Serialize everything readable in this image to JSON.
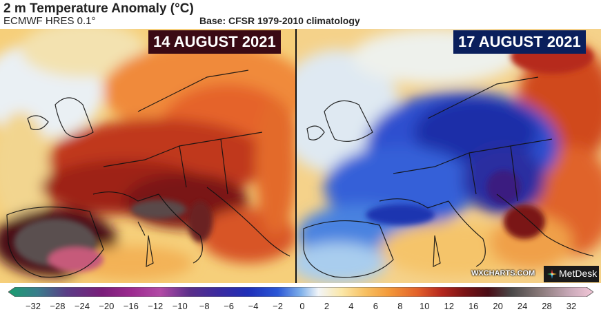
{
  "header": {
    "title": "2 m Temperature Anomaly (°C)",
    "model": "ECMWF HRES 0.1°",
    "base": "Base: CFSR 1979-2010 climatology"
  },
  "panels": {
    "left": {
      "date": "14 AUGUST 2021",
      "theme": "heat anomaly over Iberia, Italy, central Europe"
    },
    "right": {
      "date": "17 AUGUST 2021",
      "theme": "cold anomaly over France, Germany, Poland"
    }
  },
  "credits": {
    "source": "WXCHARTS.COM",
    "partner": "MetDesk"
  },
  "legend": {
    "ticks": [
      "−32",
      "−28",
      "−24",
      "−20",
      "−16",
      "−12",
      "−10",
      "−8",
      "−6",
      "−4",
      "−2",
      "0",
      "2",
      "4",
      "6",
      "8",
      "10",
      "12",
      "16",
      "20",
      "24",
      "28",
      "32"
    ],
    "colors": [
      "#1a9e6f",
      "#3a7d8c",
      "#5a3d86",
      "#7a1e7a",
      "#9c2a8f",
      "#b24aa6",
      "#5b2f8a",
      "#3b2ba0",
      "#1f2fb8",
      "#2a56d6",
      "#7fb0ea",
      "#f2f5f8",
      "#fbe7a8",
      "#f7c062",
      "#f39a3a",
      "#e2602a",
      "#b6281f",
      "#7a1416",
      "#4a0d16",
      "#4a4848",
      "#8a7a7a",
      "#c9a9b8",
      "#f3c7d8"
    ]
  }
}
